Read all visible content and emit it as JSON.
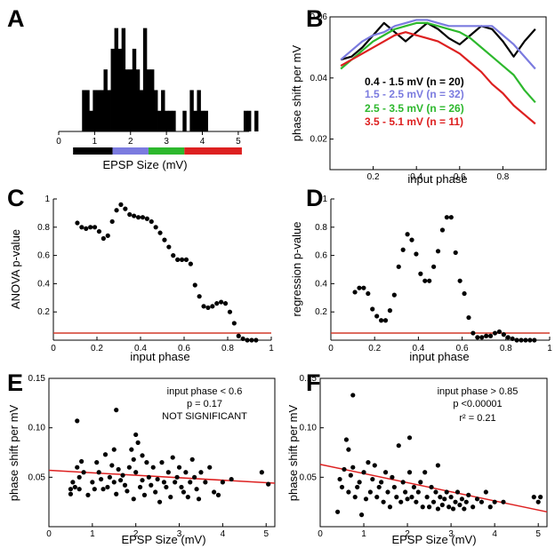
{
  "panels": {
    "a": "A",
    "b": "B",
    "c": "C",
    "d": "D",
    "e": "E",
    "f": "F"
  },
  "colors": {
    "black": "#000000",
    "blue": "#7b7bdf",
    "green": "#2db82d",
    "red": "#dd2020",
    "threshold": "#d23a2a"
  },
  "chart_data": [
    {
      "panel": "A",
      "type": "bar",
      "xlabel": "EPSP Size (mV)",
      "ylabel": "",
      "xlim": [
        0,
        5.3
      ],
      "xticks": [
        "0",
        "1",
        "2",
        "3",
        "4",
        "5"
      ],
      "bin_start": 0.55,
      "bin_width": 0.1,
      "values": [
        0,
        2,
        2,
        1,
        2,
        2,
        2,
        3,
        2,
        4,
        5,
        4,
        5,
        3,
        3,
        4,
        3,
        2,
        5,
        3,
        3,
        2,
        1,
        2,
        1,
        1,
        1,
        0,
        0,
        1,
        0,
        2,
        1,
        2,
        1,
        1,
        0,
        0,
        0,
        0,
        0,
        0,
        0,
        0,
        0,
        0,
        1,
        1,
        0,
        1
      ],
      "ylim": [
        0,
        5.5
      ],
      "color_bar": [
        {
          "from": 0.4,
          "to": 1.5,
          "color": "#000000"
        },
        {
          "from": 1.5,
          "to": 2.5,
          "color": "#7b7bdf"
        },
        {
          "from": 2.5,
          "to": 3.5,
          "color": "#2db82d"
        },
        {
          "from": 3.5,
          "to": 5.1,
          "color": "#dd2020"
        }
      ]
    },
    {
      "panel": "B",
      "type": "line",
      "xlabel": "input phase",
      "ylabel": "phase shift per mV",
      "xlim": [
        0,
        1
      ],
      "ylim": [
        0.01,
        0.06
      ],
      "xticks": [
        "0.2",
        "0.4",
        "0.6",
        "0.8"
      ],
      "yticks": [
        "0.02",
        "0.04",
        "0.06"
      ],
      "x": [
        0.05,
        0.1,
        0.15,
        0.2,
        0.25,
        0.3,
        0.35,
        0.4,
        0.45,
        0.5,
        0.55,
        0.6,
        0.65,
        0.7,
        0.75,
        0.8,
        0.85,
        0.9,
        0.95
      ],
      "series": [
        {
          "name": "0.4 - 1.5 mV  (n = 20)",
          "color": "#000000",
          "values": [
            0.046,
            0.047,
            0.05,
            0.054,
            0.058,
            0.055,
            0.052,
            0.055,
            0.058,
            0.056,
            0.053,
            0.051,
            0.054,
            0.057,
            0.056,
            0.052,
            0.047,
            0.052,
            0.056
          ]
        },
        {
          "name": "1.5 - 2.5 mV  (n = 32)",
          "color": "#7b7bdf",
          "values": [
            0.046,
            0.049,
            0.052,
            0.054,
            0.055,
            0.057,
            0.058,
            0.059,
            0.059,
            0.058,
            0.057,
            0.057,
            0.057,
            0.057,
            0.057,
            0.054,
            0.051,
            0.047,
            0.043
          ]
        },
        {
          "name": "2.5 - 3.5 mV  (n = 26)",
          "color": "#2db82d",
          "values": [
            0.043,
            0.046,
            0.049,
            0.052,
            0.054,
            0.056,
            0.057,
            0.058,
            0.058,
            0.057,
            0.056,
            0.055,
            0.053,
            0.05,
            0.047,
            0.044,
            0.041,
            0.036,
            0.032
          ]
        },
        {
          "name": "3.5 - 5.1 mV  (n = 11)",
          "color": "#dd2020",
          "values": [
            0.044,
            0.046,
            0.048,
            0.05,
            0.052,
            0.054,
            0.055,
            0.054,
            0.053,
            0.052,
            0.05,
            0.048,
            0.045,
            0.042,
            0.038,
            0.035,
            0.031,
            0.028,
            0.025
          ]
        }
      ]
    },
    {
      "panel": "C",
      "type": "scatter",
      "xlabel": "input phase",
      "ylabel": "ANOVA p-value",
      "xlim": [
        0,
        1
      ],
      "ylim": [
        0,
        1
      ],
      "xticks": [
        "0",
        "0.2",
        "0.4",
        "0.6",
        "0.8",
        "1"
      ],
      "yticks": [
        "0.2",
        "0.4",
        "0.6",
        "0.8",
        "1"
      ],
      "threshold": 0.05,
      "x": [
        0.11,
        0.13,
        0.15,
        0.17,
        0.19,
        0.21,
        0.23,
        0.25,
        0.27,
        0.29,
        0.31,
        0.33,
        0.35,
        0.37,
        0.39,
        0.41,
        0.43,
        0.45,
        0.47,
        0.49,
        0.51,
        0.53,
        0.55,
        0.57,
        0.59,
        0.61,
        0.63,
        0.65,
        0.67,
        0.69,
        0.71,
        0.73,
        0.75,
        0.77,
        0.79,
        0.81,
        0.83,
        0.85,
        0.87,
        0.89,
        0.91,
        0.93
      ],
      "y": [
        0.83,
        0.8,
        0.79,
        0.8,
        0.8,
        0.77,
        0.72,
        0.74,
        0.84,
        0.92,
        0.96,
        0.93,
        0.89,
        0.88,
        0.87,
        0.87,
        0.86,
        0.84,
        0.8,
        0.76,
        0.71,
        0.66,
        0.6,
        0.57,
        0.57,
        0.57,
        0.54,
        0.39,
        0.31,
        0.24,
        0.23,
        0.24,
        0.26,
        0.27,
        0.26,
        0.2,
        0.12,
        0.03,
        0.01,
        0.0,
        0.0,
        0.0
      ]
    },
    {
      "panel": "D",
      "type": "scatter",
      "xlabel": "input phase",
      "ylabel": "regression p-value",
      "xlim": [
        0,
        1
      ],
      "ylim": [
        0,
        1
      ],
      "xticks": [
        "0",
        "0.2",
        "0.4",
        "0.6",
        "0.8",
        "1"
      ],
      "yticks": [
        "0.2",
        "0.4",
        "0.6",
        "0.8",
        "1"
      ],
      "threshold": 0.05,
      "x": [
        0.11,
        0.13,
        0.15,
        0.17,
        0.19,
        0.21,
        0.23,
        0.25,
        0.27,
        0.29,
        0.31,
        0.33,
        0.35,
        0.37,
        0.39,
        0.41,
        0.43,
        0.45,
        0.47,
        0.49,
        0.51,
        0.53,
        0.55,
        0.57,
        0.59,
        0.61,
        0.63,
        0.65,
        0.67,
        0.69,
        0.71,
        0.73,
        0.75,
        0.77,
        0.79,
        0.81,
        0.83,
        0.85,
        0.87,
        0.89,
        0.91,
        0.93
      ],
      "y": [
        0.34,
        0.37,
        0.37,
        0.33,
        0.22,
        0.17,
        0.14,
        0.14,
        0.21,
        0.32,
        0.52,
        0.64,
        0.75,
        0.71,
        0.61,
        0.47,
        0.42,
        0.42,
        0.52,
        0.63,
        0.78,
        0.87,
        0.87,
        0.62,
        0.42,
        0.33,
        0.16,
        0.05,
        0.02,
        0.02,
        0.03,
        0.03,
        0.05,
        0.06,
        0.04,
        0.02,
        0.01,
        0.0,
        0.0,
        0.0,
        0.0,
        0.0
      ]
    },
    {
      "panel": "E",
      "type": "scatter",
      "xlabel": "EPSP Size (mV)",
      "ylabel": "phase shift per mV",
      "xlim": [
        0,
        5.2
      ],
      "ylim": [
        0,
        0.15
      ],
      "xticks": [
        "0",
        "1",
        "2",
        "3",
        "4",
        "5"
      ],
      "yticks": [
        "0.05",
        "0.10",
        "0.15"
      ],
      "annotations": [
        "input phase < 0.6",
        "p = 0.17",
        "NOT SIGNIFICANT"
      ],
      "fit": {
        "x": [
          0,
          5.2
        ],
        "y": [
          0.057,
          0.044
        ],
        "color": "#dd2020"
      },
      "x": [
        0.5,
        0.5,
        0.55,
        0.6,
        0.65,
        0.7,
        0.7,
        0.75,
        0.8,
        0.9,
        1.0,
        1.05,
        1.1,
        1.15,
        1.2,
        1.25,
        1.3,
        1.35,
        1.4,
        1.45,
        1.5,
        1.5,
        1.55,
        1.6,
        1.65,
        1.7,
        1.75,
        1.8,
        1.85,
        1.9,
        1.95,
        2.0,
        2.0,
        2.05,
        2.1,
        2.15,
        2.2,
        2.25,
        2.3,
        2.35,
        2.4,
        2.45,
        2.5,
        2.55,
        2.6,
        2.65,
        2.7,
        2.75,
        2.8,
        2.85,
        2.9,
        2.95,
        3.0,
        3.05,
        3.1,
        3.15,
        3.2,
        3.25,
        3.3,
        3.35,
        3.4,
        3.45,
        3.5,
        3.6,
        3.7,
        3.8,
        3.9,
        4.0,
        4.2,
        4.9,
        5.05,
        1.55,
        0.65,
        1.95,
        2.15
      ],
      "y": [
        0.038,
        0.033,
        0.045,
        0.04,
        0.107,
        0.05,
        0.038,
        0.066,
        0.055,
        0.032,
        0.045,
        0.038,
        0.065,
        0.055,
        0.048,
        0.038,
        0.073,
        0.04,
        0.05,
        0.062,
        0.045,
        0.078,
        0.033,
        0.058,
        0.047,
        0.052,
        0.042,
        0.036,
        0.06,
        0.078,
        0.028,
        0.093,
        0.055,
        0.085,
        0.04,
        0.047,
        0.032,
        0.065,
        0.05,
        0.042,
        0.06,
        0.035,
        0.048,
        0.025,
        0.065,
        0.045,
        0.04,
        0.055,
        0.03,
        0.07,
        0.045,
        0.05,
        0.06,
        0.04,
        0.035,
        0.055,
        0.03,
        0.045,
        0.068,
        0.05,
        0.038,
        0.028,
        0.055,
        0.045,
        0.06,
        0.035,
        0.032,
        0.045,
        0.048,
        0.055,
        0.043,
        0.118,
        0.06,
        0.068,
        0.072
      ]
    },
    {
      "panel": "F",
      "type": "scatter",
      "xlabel": "EPSP Size (mV)",
      "ylabel": "phase shift per mV",
      "xlim": [
        0,
        5.2
      ],
      "ylim": [
        0,
        0.15
      ],
      "xticks": [
        "0",
        "1",
        "2",
        "3",
        "4",
        "5"
      ],
      "yticks": [
        "0.05",
        "0.10",
        "0.15"
      ],
      "annotations": [
        "input phase > 0.85",
        "p <0.00001",
        "r² = 0.21"
      ],
      "fit": {
        "x": [
          0,
          5.2
        ],
        "y": [
          0.063,
          0.015
        ],
        "color": "#dd2020"
      },
      "x": [
        0.4,
        0.45,
        0.5,
        0.55,
        0.6,
        0.65,
        0.7,
        0.75,
        0.8,
        0.85,
        0.9,
        0.95,
        1.0,
        1.05,
        1.1,
        1.15,
        1.2,
        1.25,
        1.3,
        1.35,
        1.4,
        1.45,
        1.5,
        1.55,
        1.6,
        1.65,
        1.7,
        1.75,
        1.8,
        1.85,
        1.9,
        1.95,
        2.0,
        2.05,
        2.1,
        2.15,
        2.2,
        2.25,
        2.3,
        2.35,
        2.4,
        2.45,
        2.5,
        2.55,
        2.6,
        2.65,
        2.7,
        2.75,
        2.8,
        2.85,
        2.9,
        2.95,
        3.0,
        3.05,
        3.1,
        3.15,
        3.2,
        3.25,
        3.3,
        3.35,
        3.4,
        3.5,
        3.6,
        3.7,
        3.8,
        3.9,
        4.0,
        4.2,
        4.9,
        5.0,
        5.05,
        0.65,
        0.75,
        2.05,
        2.7
      ],
      "y": [
        0.015,
        0.048,
        0.04,
        0.058,
        0.088,
        0.035,
        0.052,
        0.06,
        0.03,
        0.04,
        0.045,
        0.012,
        0.055,
        0.028,
        0.065,
        0.035,
        0.048,
        0.062,
        0.03,
        0.04,
        0.045,
        0.025,
        0.055,
        0.035,
        0.02,
        0.05,
        0.04,
        0.03,
        0.082,
        0.025,
        0.045,
        0.035,
        0.028,
        0.055,
        0.03,
        0.04,
        0.025,
        0.035,
        0.045,
        0.02,
        0.055,
        0.03,
        0.02,
        0.04,
        0.025,
        0.035,
        0.018,
        0.03,
        0.022,
        0.028,
        0.035,
        0.02,
        0.03,
        0.018,
        0.025,
        0.035,
        0.022,
        0.028,
        0.018,
        0.025,
        0.032,
        0.02,
        0.028,
        0.025,
        0.035,
        0.02,
        0.025,
        0.025,
        0.03,
        0.025,
        0.03,
        0.078,
        0.133,
        0.09,
        0.062
      ]
    }
  ]
}
